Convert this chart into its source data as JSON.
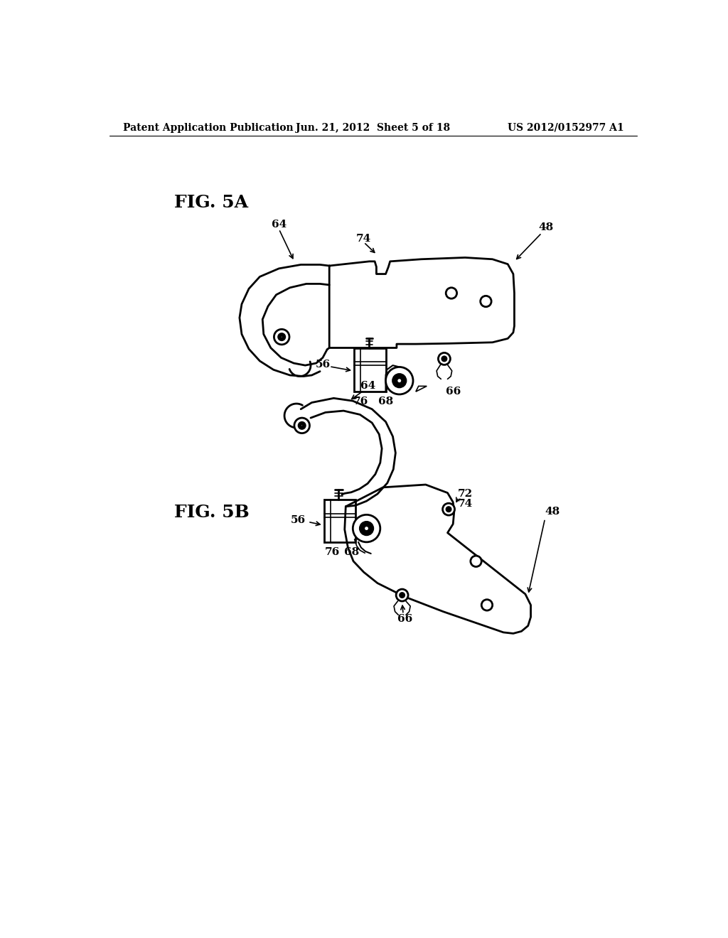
{
  "background_color": "#ffffff",
  "header_left": "Patent Application Publication",
  "header_center": "Jun. 21, 2012  Sheet 5 of 18",
  "header_right": "US 2012/0152977 A1",
  "fig5a_label": "FIG. 5A",
  "fig5b_label": "FIG. 5B",
  "line_color": "#000000",
  "lw": 2.0,
  "label_fontsize": 11,
  "header_fontsize": 10,
  "figlabel_fontsize": 18
}
